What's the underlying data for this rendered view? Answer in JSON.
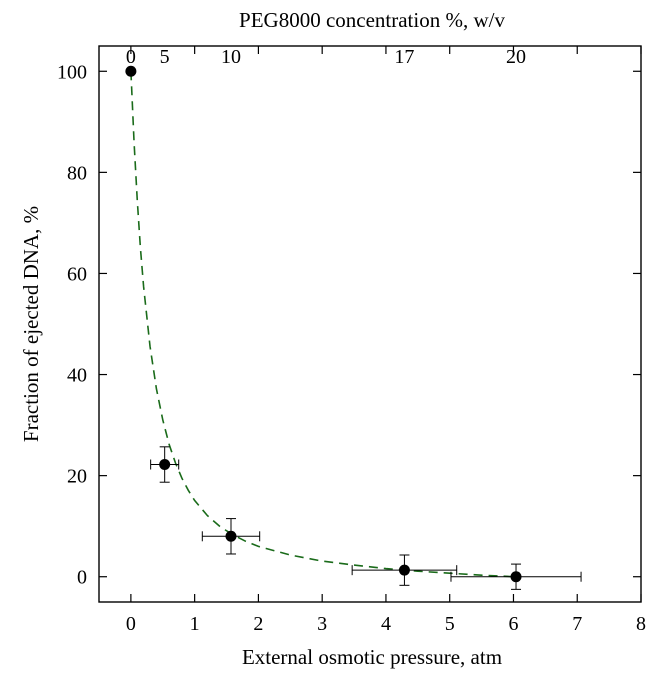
{
  "chart_data": {
    "type": "scatter",
    "xlabel": "External osmotic pressure, atm",
    "ylabel": "Fraction of ejected DNA, %",
    "top_xlabel": "PEG8000 concentration %, w/v",
    "xlim": [
      -0.5,
      8
    ],
    "ylim": [
      -5,
      105
    ],
    "xticks": [
      0,
      1,
      2,
      3,
      4,
      5,
      6,
      7,
      8
    ],
    "yticks": [
      0,
      20,
      40,
      60,
      80,
      100
    ],
    "top_ticks": [
      {
        "label": "0",
        "x": 0
      },
      {
        "label": "5",
        "x": 0.53
      },
      {
        "label": "10",
        "x": 1.57
      },
      {
        "label": "17",
        "x": 4.29
      },
      {
        "label": "20",
        "x": 6.04
      }
    ],
    "series": [
      {
        "points": [
          {
            "x": 0,
            "y": 100,
            "xerr": 0,
            "yerr": 0
          },
          {
            "x": 0.53,
            "y": 22.2,
            "xerr": 0.22,
            "yerr": 3.5
          },
          {
            "x": 1.57,
            "y": 8.0,
            "xerr": 0.45,
            "yerr": 3.5
          },
          {
            "x": 4.29,
            "y": 1.3,
            "xerr": 0.82,
            "yerr": 3.0
          },
          {
            "x": 6.04,
            "y": 0.0,
            "xerr": 1.02,
            "yerr": 2.5
          }
        ]
      }
    ],
    "fit_curve": {
      "style": "dashed",
      "color": "#1a6b1a",
      "points": [
        [
          0,
          100
        ],
        [
          0.05,
          85.8
        ],
        [
          0.1,
          74.4
        ],
        [
          0.15,
          65.1
        ],
        [
          0.2,
          57.4
        ],
        [
          0.3,
          45.6
        ],
        [
          0.4,
          37.2
        ],
        [
          0.5,
          31.0
        ],
        [
          0.6,
          26.2
        ],
        [
          0.7,
          22.5
        ],
        [
          0.8,
          19.5
        ],
        [
          0.9,
          17.1
        ],
        [
          1.0,
          15.1
        ],
        [
          1.2,
          12.1
        ],
        [
          1.4,
          9.9
        ],
        [
          1.6,
          8.3
        ],
        [
          1.8,
          7.0
        ],
        [
          2.0,
          6.0
        ],
        [
          2.5,
          4.3
        ],
        [
          3.0,
          3.1
        ],
        [
          3.5,
          2.3
        ],
        [
          4.0,
          1.6
        ],
        [
          4.5,
          1.1
        ],
        [
          5.0,
          0.7
        ],
        [
          5.5,
          0.3
        ],
        [
          6.0,
          0.0
        ]
      ]
    },
    "marker_color": "#000000",
    "grid": false
  }
}
